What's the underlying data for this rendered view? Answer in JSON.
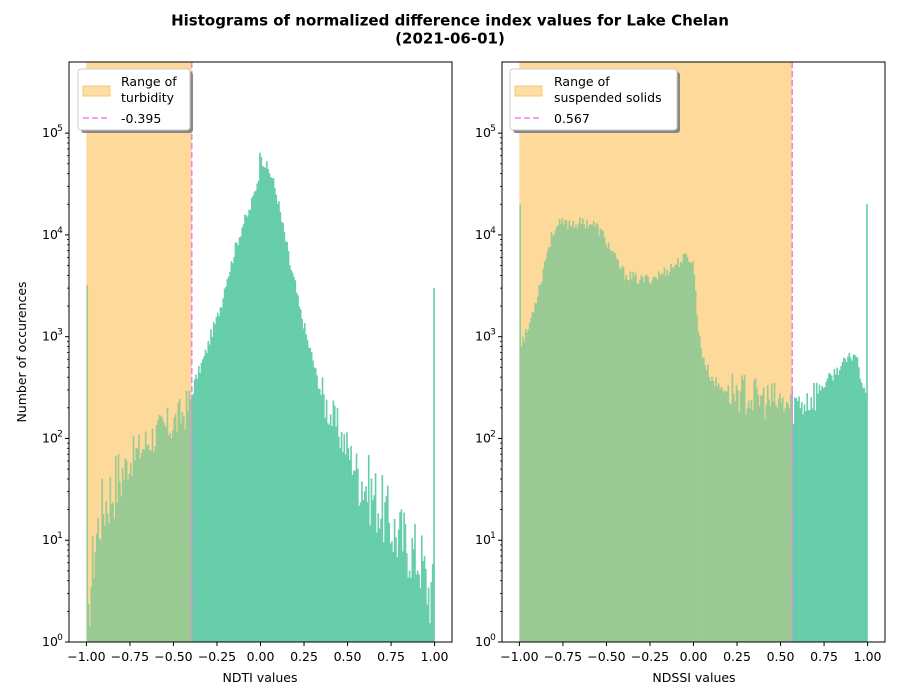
{
  "figure": {
    "title_line1": "Histograms of normalized difference index values for Lake Chelan",
    "title_line2": "(2021-06-01)"
  },
  "colors": {
    "bars": "#66cdaa",
    "range_fill": "#fcc76a",
    "threshold_line": "#ee82ee",
    "overlap_hint": "#98c078"
  },
  "chart_data": [
    {
      "type": "bar",
      "subtype": "histogram",
      "xlabel": "NDTI values",
      "ylabel": "Number of occurences",
      "xlim": [
        -1.1,
        1.1
      ],
      "ylim": [
        1,
        500000
      ],
      "yscale": "log",
      "xticks": [
        "−1.00",
        "−0.75",
        "−0.50",
        "−0.25",
        "0.00",
        "0.25",
        "0.50",
        "0.75",
        "1.00"
      ],
      "xtick_values": [
        -1.0,
        -0.75,
        -0.5,
        -0.25,
        0.0,
        0.25,
        0.5,
        0.75,
        1.0
      ],
      "ytick_exponents": [
        0,
        1,
        2,
        3,
        4,
        5
      ],
      "range": [
        -1.0,
        -0.395
      ],
      "threshold": -0.395,
      "legend": {
        "placement": "upper-left",
        "range_label_line1": "Range of",
        "range_label_line2": "turbidity",
        "threshold_label": "-0.395"
      },
      "profile": [
        [
          -1.0,
          3200
        ],
        [
          -0.99,
          1
        ],
        [
          -0.98,
          3
        ],
        [
          -0.96,
          7
        ],
        [
          -0.94,
          12
        ],
        [
          -0.92,
          18
        ],
        [
          -0.9,
          22
        ],
        [
          -0.87,
          28
        ],
        [
          -0.85,
          32
        ],
        [
          -0.82,
          40
        ],
        [
          -0.8,
          45
        ],
        [
          -0.77,
          55
        ],
        [
          -0.75,
          62
        ],
        [
          -0.72,
          70
        ],
        [
          -0.7,
          75
        ],
        [
          -0.67,
          85
        ],
        [
          -0.65,
          95
        ],
        [
          -0.62,
          105
        ],
        [
          -0.6,
          110
        ],
        [
          -0.57,
          120
        ],
        [
          -0.55,
          125
        ],
        [
          -0.52,
          135
        ],
        [
          -0.5,
          140
        ],
        [
          -0.47,
          155
        ],
        [
          -0.45,
          175
        ],
        [
          -0.42,
          200
        ],
        [
          -0.4,
          240
        ],
        [
          -0.38,
          350
        ],
        [
          -0.35,
          480
        ],
        [
          -0.32,
          650
        ],
        [
          -0.3,
          850
        ],
        [
          -0.28,
          1100
        ],
        [
          -0.25,
          1500
        ],
        [
          -0.22,
          2300
        ],
        [
          -0.2,
          3500
        ],
        [
          -0.17,
          5000
        ],
        [
          -0.15,
          7000
        ],
        [
          -0.12,
          10000
        ],
        [
          -0.1,
          13000
        ],
        [
          -0.07,
          16000
        ],
        [
          -0.05,
          21000
        ],
        [
          -0.03,
          28000
        ],
        [
          -0.01,
          40000
        ],
        [
          0.0,
          75000
        ],
        [
          0.01,
          55000
        ],
        [
          0.03,
          48000
        ],
        [
          0.05,
          42000
        ],
        [
          0.07,
          35000
        ],
        [
          0.1,
          22000
        ],
        [
          0.12,
          14000
        ],
        [
          0.15,
          8000
        ],
        [
          0.17,
          5000
        ],
        [
          0.2,
          3200
        ],
        [
          0.22,
          2000
        ],
        [
          0.25,
          1300
        ],
        [
          0.27,
          900
        ],
        [
          0.3,
          600
        ],
        [
          0.32,
          420
        ],
        [
          0.35,
          280
        ],
        [
          0.37,
          230
        ],
        [
          0.4,
          180
        ],
        [
          0.42,
          150
        ],
        [
          0.45,
          120
        ],
        [
          0.47,
          100
        ],
        [
          0.5,
          80
        ],
        [
          0.52,
          65
        ],
        [
          0.55,
          52
        ],
        [
          0.57,
          45
        ],
        [
          0.6,
          38
        ],
        [
          0.62,
          32
        ],
        [
          0.65,
          28
        ],
        [
          0.67,
          24
        ],
        [
          0.7,
          20
        ],
        [
          0.72,
          17
        ],
        [
          0.75,
          14
        ],
        [
          0.77,
          12
        ],
        [
          0.8,
          11
        ],
        [
          0.82,
          10
        ],
        [
          0.85,
          9
        ],
        [
          0.87,
          8
        ],
        [
          0.9,
          7
        ],
        [
          0.93,
          6
        ],
        [
          0.95,
          4
        ],
        [
          0.97,
          3
        ],
        [
          0.99,
          3
        ],
        [
          1.0,
          3000
        ]
      ]
    },
    {
      "type": "bar",
      "subtype": "histogram",
      "xlabel": "NDSSI values",
      "ylabel": "",
      "xlim": [
        -1.1,
        1.1
      ],
      "ylim": [
        1,
        500000
      ],
      "yscale": "log",
      "xticks": [
        "−1.00",
        "−0.75",
        "−0.50",
        "−0.25",
        "0.00",
        "0.25",
        "0.50",
        "0.75",
        "1.00"
      ],
      "xtick_values": [
        -1.0,
        -0.75,
        -0.5,
        -0.25,
        0.0,
        0.25,
        0.5,
        0.75,
        1.0
      ],
      "ytick_exponents": [
        0,
        1,
        2,
        3,
        4,
        5
      ],
      "range": [
        -1.0,
        0.567
      ],
      "threshold": 0.567,
      "legend": {
        "placement": "upper-left",
        "range_label_line1": "Range of",
        "range_label_line2": "suspended solids",
        "threshold_label": "0.567"
      },
      "profile": [
        [
          -1.0,
          20000
        ],
        [
          -0.99,
          900
        ],
        [
          -0.97,
          1000
        ],
        [
          -0.95,
          1200
        ],
        [
          -0.93,
          1600
        ],
        [
          -0.9,
          2500
        ],
        [
          -0.87,
          4000
        ],
        [
          -0.85,
          6000
        ],
        [
          -0.82,
          9000
        ],
        [
          -0.8,
          11500
        ],
        [
          -0.77,
          12500
        ],
        [
          -0.75,
          12800
        ],
        [
          -0.7,
          13000
        ],
        [
          -0.65,
          13000
        ],
        [
          -0.6,
          13200
        ],
        [
          -0.57,
          12500
        ],
        [
          -0.55,
          11500
        ],
        [
          -0.52,
          10000
        ],
        [
          -0.5,
          8500
        ],
        [
          -0.47,
          7000
        ],
        [
          -0.45,
          5800
        ],
        [
          -0.42,
          4800
        ],
        [
          -0.4,
          4200
        ],
        [
          -0.35,
          3800
        ],
        [
          -0.3,
          3600
        ],
        [
          -0.25,
          3700
        ],
        [
          -0.2,
          4000
        ],
        [
          -0.15,
          4500
        ],
        [
          -0.1,
          5200
        ],
        [
          -0.05,
          5900
        ],
        [
          -0.02,
          6000
        ],
        [
          0.0,
          5000
        ],
        [
          0.01,
          3000
        ],
        [
          0.02,
          1800
        ],
        [
          0.03,
          1000
        ],
        [
          0.05,
          700
        ],
        [
          0.07,
          520
        ],
        [
          0.1,
          400
        ],
        [
          0.15,
          320
        ],
        [
          0.2,
          300
        ],
        [
          0.25,
          290
        ],
        [
          0.3,
          270
        ],
        [
          0.35,
          250
        ],
        [
          0.4,
          240
        ],
        [
          0.45,
          230
        ],
        [
          0.5,
          220
        ],
        [
          0.55,
          210
        ],
        [
          0.6,
          220
        ],
        [
          0.65,
          240
        ],
        [
          0.7,
          280
        ],
        [
          0.75,
          340
        ],
        [
          0.8,
          420
        ],
        [
          0.85,
          520
        ],
        [
          0.9,
          620
        ],
        [
          0.93,
          700
        ],
        [
          0.95,
          500
        ],
        [
          0.97,
          350
        ],
        [
          0.99,
          300
        ],
        [
          1.0,
          20000
        ]
      ]
    }
  ]
}
